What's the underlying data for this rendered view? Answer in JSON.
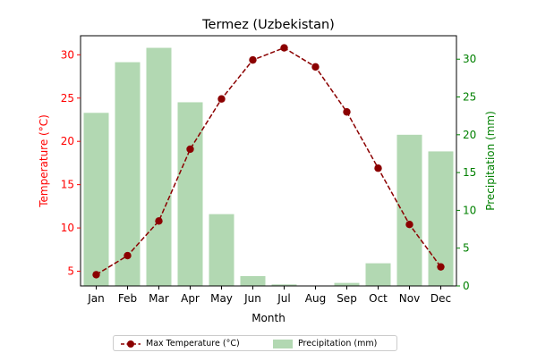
{
  "chart_data": {
    "type": "bar+line",
    "title": "Termez (Uzbekistan)",
    "xlabel": "Month",
    "categories": [
      "Jan",
      "Feb",
      "Mar",
      "Apr",
      "May",
      "Jun",
      "Jul",
      "Aug",
      "Sep",
      "Oct",
      "Nov",
      "Dec"
    ],
    "left_axis": {
      "label": "Temperature (°C)",
      "color": "#ff0000",
      "ylim": [
        3.3,
        32.2
      ],
      "ticks": [
        5,
        10,
        15,
        20,
        25,
        30
      ]
    },
    "right_axis": {
      "label": "Precipitation (mm)",
      "color": "#008000",
      "ylim": [
        0,
        33.1
      ],
      "ticks": [
        0,
        5,
        10,
        15,
        20,
        25,
        30
      ]
    },
    "series": [
      {
        "name": "Max Temperature (°C)",
        "type": "line",
        "axis": "left",
        "color": "#8b0000",
        "linestyle": "dashed",
        "marker": "circle",
        "values": [
          4.6,
          6.8,
          10.8,
          19.1,
          24.9,
          29.4,
          30.8,
          28.6,
          23.4,
          16.9,
          10.4,
          5.5
        ]
      },
      {
        "name": "Precipitation (mm)",
        "type": "bar",
        "axis": "right",
        "color": "#b2d8b2",
        "values": [
          22.9,
          29.6,
          31.5,
          24.3,
          9.5,
          1.3,
          0.2,
          0.0,
          0.4,
          3.0,
          20.0,
          17.8
        ]
      }
    ],
    "legend": {
      "placement": "bottom-center",
      "ncol": 2
    }
  }
}
